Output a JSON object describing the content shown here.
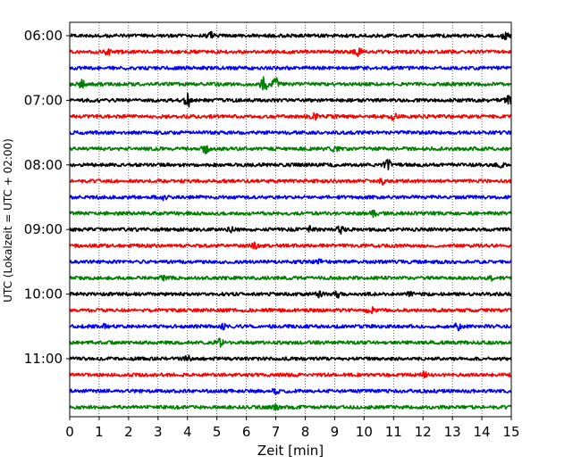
{
  "chart_data": {
    "type": "line",
    "title": "",
    "xlabel": "Zeit  [min]",
    "ylabel": "UTC (Lokalzeit = UTC + 02:00)",
    "xlim": [
      0,
      15
    ],
    "x_ticks": [
      0,
      1,
      2,
      3,
      4,
      5,
      6,
      7,
      8,
      9,
      10,
      11,
      12,
      13,
      14,
      15
    ],
    "y_tick_labels": [
      "06:00",
      "07:00",
      "08:00",
      "09:00",
      "10:00",
      "11:00"
    ],
    "grid": "vertical dotted at each minute",
    "trace_minutes": 15,
    "colors_cycle": [
      "#000000",
      "#ff0000",
      "#0000ff",
      "#008000"
    ],
    "series": [
      {
        "start": "06:00",
        "color": "#000000",
        "events": [
          [
            4.8,
            0.4
          ],
          [
            14.8,
            0.5
          ]
        ]
      },
      {
        "start": "06:15",
        "color": "#ff0000",
        "events": [
          [
            1.3,
            0.4
          ],
          [
            9.8,
            0.5
          ]
        ]
      },
      {
        "start": "06:30",
        "color": "#0000ff",
        "events": []
      },
      {
        "start": "06:45",
        "color": "#008000",
        "events": [
          [
            0.4,
            0.5
          ],
          [
            6.6,
            1.2
          ],
          [
            7.0,
            0.8
          ]
        ]
      },
      {
        "start": "07:00",
        "color": "#000000",
        "events": [
          [
            4.0,
            1.0
          ],
          [
            14.9,
            0.6
          ]
        ]
      },
      {
        "start": "07:15",
        "color": "#ff0000",
        "events": [
          [
            8.3,
            0.4
          ],
          [
            11.0,
            0.4
          ]
        ]
      },
      {
        "start": "07:30",
        "color": "#0000ff",
        "events": []
      },
      {
        "start": "07:45",
        "color": "#008000",
        "events": [
          [
            4.6,
            0.6
          ],
          [
            9.0,
            0.5
          ]
        ]
      },
      {
        "start": "08:00",
        "color": "#000000",
        "events": [
          [
            10.8,
            0.8
          ],
          [
            14.6,
            0.4
          ]
        ]
      },
      {
        "start": "08:15",
        "color": "#ff0000",
        "events": [
          [
            10.6,
            0.4
          ]
        ]
      },
      {
        "start": "08:30",
        "color": "#0000ff",
        "events": [
          [
            3.2,
            0.3
          ]
        ]
      },
      {
        "start": "08:45",
        "color": "#008000",
        "events": [
          [
            10.3,
            0.4
          ]
        ]
      },
      {
        "start": "09:00",
        "color": "#000000",
        "events": [
          [
            5.5,
            0.4
          ],
          [
            8.2,
            0.4
          ],
          [
            9.2,
            0.5
          ]
        ]
      },
      {
        "start": "09:15",
        "color": "#ff0000",
        "events": [
          [
            6.3,
            0.3
          ]
        ]
      },
      {
        "start": "09:30",
        "color": "#0000ff",
        "events": [
          [
            8.5,
            0.3
          ]
        ]
      },
      {
        "start": "09:45",
        "color": "#008000",
        "events": [
          [
            3.2,
            0.3
          ],
          [
            14.3,
            0.3
          ]
        ]
      },
      {
        "start": "10:00",
        "color": "#000000",
        "events": [
          [
            8.5,
            0.4
          ],
          [
            9.1,
            0.4
          ],
          [
            11.6,
            0.3
          ]
        ]
      },
      {
        "start": "10:15",
        "color": "#ff0000",
        "events": [
          [
            10.2,
            0.5
          ]
        ]
      },
      {
        "start": "10:30",
        "color": "#0000ff",
        "events": [
          [
            1.2,
            0.5
          ],
          [
            5.2,
            0.3
          ],
          [
            13.2,
            0.5
          ]
        ]
      },
      {
        "start": "10:45",
        "color": "#008000",
        "events": [
          [
            5.1,
            0.5
          ]
        ]
      },
      {
        "start": "11:00",
        "color": "#000000",
        "events": [
          [
            4.0,
            0.4
          ]
        ]
      },
      {
        "start": "11:15",
        "color": "#ff0000",
        "events": [
          [
            12.0,
            0.5
          ]
        ]
      },
      {
        "start": "11:30",
        "color": "#0000ff",
        "events": [
          [
            7.0,
            0.3
          ]
        ]
      },
      {
        "start": "11:45",
        "color": "#008000",
        "events": [
          [
            7.0,
            0.3
          ]
        ]
      }
    ]
  }
}
